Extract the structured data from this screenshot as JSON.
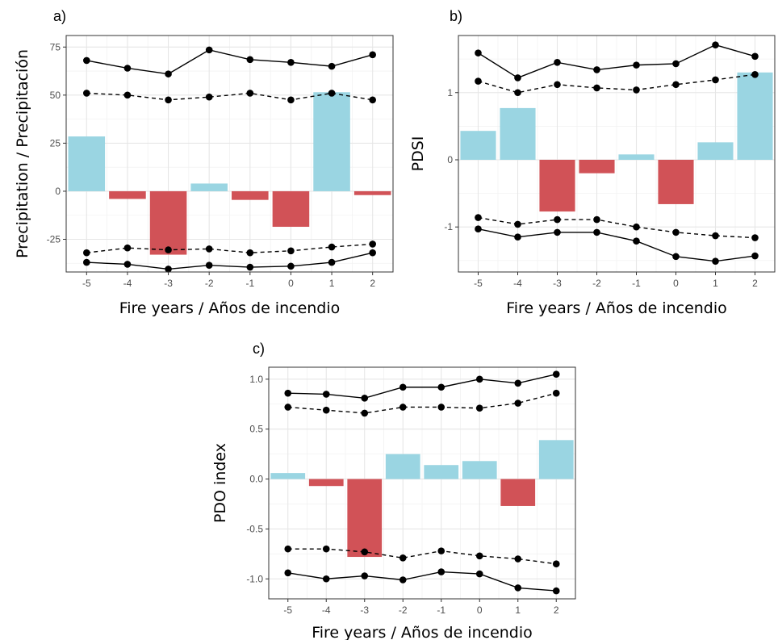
{
  "colors": {
    "positive_bar": "#9ad5e2",
    "negative_bar": "#d15257",
    "ci_line": "#000000",
    "grid_major": "#e6e6e6",
    "grid_minor": "#f2f2f2",
    "panel_border": "#333333"
  },
  "chart_data": [
    {
      "type": "bar",
      "panel_label": "a)",
      "xlabel": "Fire years / Años de incendio",
      "ylabel": "Precipitation / Precipitación",
      "categories": [
        "-5",
        "-4",
        "-3",
        "-2",
        "-1",
        "0",
        "1",
        "2"
      ],
      "ylim": [
        -42,
        81
      ],
      "yticks": [
        -25,
        0,
        25,
        50,
        75
      ],
      "ytick_labels": [
        "-25",
        "0",
        "25",
        "50",
        "75"
      ],
      "grid": true,
      "values": [
        28.5,
        -4,
        -33,
        4,
        -4.5,
        -18.5,
        51.5,
        -2
      ],
      "ci_lines": [
        {
          "style": "solid",
          "values": [
            68,
            64,
            61,
            73.5,
            68.5,
            67,
            65,
            71
          ]
        },
        {
          "style": "dashed",
          "values": [
            51,
            50,
            47.5,
            49,
            51,
            47.5,
            51,
            47.5
          ]
        },
        {
          "style": "dashed",
          "values": [
            -32,
            -29.5,
            -30.5,
            -30,
            -32,
            -31,
            -29,
            -27.5
          ]
        },
        {
          "style": "solid",
          "values": [
            -37,
            -38,
            -40.5,
            -38.5,
            -39.5,
            -39,
            -37,
            -32
          ]
        }
      ]
    },
    {
      "type": "bar",
      "panel_label": "b)",
      "xlabel": "Fire years / Años de incendio",
      "ylabel": "PDSI",
      "categories": [
        "-5",
        "-4",
        "-3",
        "-2",
        "-1",
        "0",
        "1",
        "2"
      ],
      "ylim": [
        -1.67,
        1.85
      ],
      "yticks": [
        -1,
        0,
        1
      ],
      "ytick_labels": [
        "-1",
        "0",
        "1"
      ],
      "grid": true,
      "values": [
        0.43,
        0.77,
        -0.77,
        -0.2,
        0.08,
        -0.66,
        0.26,
        1.3
      ],
      "ci_lines": [
        {
          "style": "solid",
          "values": [
            1.59,
            1.22,
            1.45,
            1.34,
            1.41,
            1.43,
            1.71,
            1.54
          ]
        },
        {
          "style": "dashed",
          "values": [
            1.17,
            1.0,
            1.12,
            1.07,
            1.04,
            1.12,
            1.19,
            1.27
          ]
        },
        {
          "style": "dashed",
          "values": [
            -0.86,
            -0.96,
            -0.89,
            -0.89,
            -1.0,
            -1.08,
            -1.13,
            -1.16
          ]
        },
        {
          "style": "solid",
          "values": [
            -1.03,
            -1.15,
            -1.08,
            -1.08,
            -1.21,
            -1.44,
            -1.51,
            -1.43
          ]
        }
      ]
    },
    {
      "type": "bar",
      "panel_label": "c)",
      "xlabel": "Fire years / Años de incendio",
      "ylabel": "PDO index",
      "categories": [
        "-5",
        "-4",
        "-3",
        "-2",
        "-1",
        "0",
        "1",
        "2"
      ],
      "ylim": [
        -1.2,
        1.12
      ],
      "yticks": [
        -1.0,
        -0.5,
        0.0,
        0.5,
        1.0
      ],
      "ytick_labels": [
        "-1.0",
        "-0.5",
        "0.0",
        "0.5",
        "1.0"
      ],
      "grid": true,
      "values": [
        0.06,
        -0.07,
        -0.78,
        0.25,
        0.14,
        0.18,
        -0.27,
        0.39
      ],
      "ci_lines": [
        {
          "style": "solid",
          "values": [
            0.86,
            0.85,
            0.81,
            0.92,
            0.92,
            1.0,
            0.96,
            1.05
          ]
        },
        {
          "style": "dashed",
          "values": [
            0.72,
            0.69,
            0.66,
            0.72,
            0.72,
            0.71,
            0.76,
            0.86
          ]
        },
        {
          "style": "dashed",
          "values": [
            -0.7,
            -0.7,
            -0.73,
            -0.79,
            -0.72,
            -0.77,
            -0.8,
            -0.85
          ]
        },
        {
          "style": "solid",
          "values": [
            -0.94,
            -1.0,
            -0.97,
            -1.01,
            -0.93,
            -0.95,
            -1.09,
            -1.12
          ]
        }
      ]
    }
  ]
}
